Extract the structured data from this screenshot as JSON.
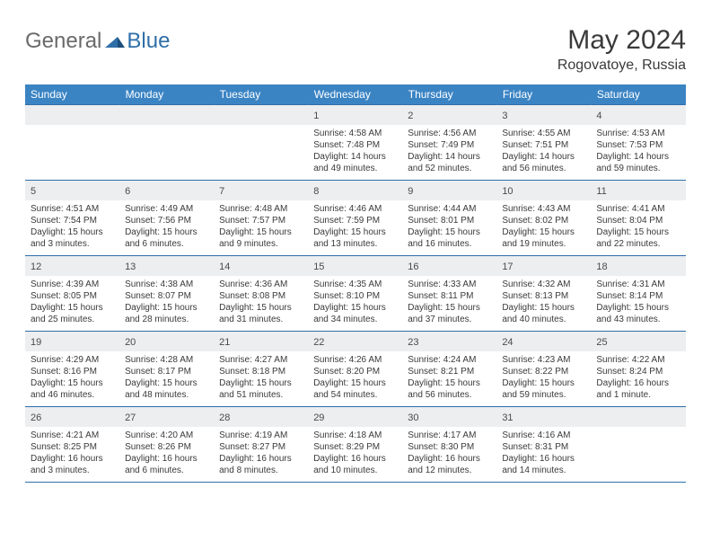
{
  "brand": {
    "part1": "General",
    "part2": "Blue"
  },
  "title": "May 2024",
  "location": "Rogovatoye, Russia",
  "theme": {
    "header_bg": "#3b84c4",
    "header_fg": "#ffffff",
    "rule_color": "#2f6fa8",
    "daynum_bg": "#eceeef",
    "text_color": "#3a3a3a"
  },
  "weekdays": [
    "Sunday",
    "Monday",
    "Tuesday",
    "Wednesday",
    "Thursday",
    "Friday",
    "Saturday"
  ],
  "weeks": [
    [
      null,
      null,
      null,
      {
        "d": "1",
        "sr": "4:58 AM",
        "ss": "7:48 PM",
        "dl": "14 hours and 49 minutes."
      },
      {
        "d": "2",
        "sr": "4:56 AM",
        "ss": "7:49 PM",
        "dl": "14 hours and 52 minutes."
      },
      {
        "d": "3",
        "sr": "4:55 AM",
        "ss": "7:51 PM",
        "dl": "14 hours and 56 minutes."
      },
      {
        "d": "4",
        "sr": "4:53 AM",
        "ss": "7:53 PM",
        "dl": "14 hours and 59 minutes."
      }
    ],
    [
      {
        "d": "5",
        "sr": "4:51 AM",
        "ss": "7:54 PM",
        "dl": "15 hours and 3 minutes."
      },
      {
        "d": "6",
        "sr": "4:49 AM",
        "ss": "7:56 PM",
        "dl": "15 hours and 6 minutes."
      },
      {
        "d": "7",
        "sr": "4:48 AM",
        "ss": "7:57 PM",
        "dl": "15 hours and 9 minutes."
      },
      {
        "d": "8",
        "sr": "4:46 AM",
        "ss": "7:59 PM",
        "dl": "15 hours and 13 minutes."
      },
      {
        "d": "9",
        "sr": "4:44 AM",
        "ss": "8:01 PM",
        "dl": "15 hours and 16 minutes."
      },
      {
        "d": "10",
        "sr": "4:43 AM",
        "ss": "8:02 PM",
        "dl": "15 hours and 19 minutes."
      },
      {
        "d": "11",
        "sr": "4:41 AM",
        "ss": "8:04 PM",
        "dl": "15 hours and 22 minutes."
      }
    ],
    [
      {
        "d": "12",
        "sr": "4:39 AM",
        "ss": "8:05 PM",
        "dl": "15 hours and 25 minutes."
      },
      {
        "d": "13",
        "sr": "4:38 AM",
        "ss": "8:07 PM",
        "dl": "15 hours and 28 minutes."
      },
      {
        "d": "14",
        "sr": "4:36 AM",
        "ss": "8:08 PM",
        "dl": "15 hours and 31 minutes."
      },
      {
        "d": "15",
        "sr": "4:35 AM",
        "ss": "8:10 PM",
        "dl": "15 hours and 34 minutes."
      },
      {
        "d": "16",
        "sr": "4:33 AM",
        "ss": "8:11 PM",
        "dl": "15 hours and 37 minutes."
      },
      {
        "d": "17",
        "sr": "4:32 AM",
        "ss": "8:13 PM",
        "dl": "15 hours and 40 minutes."
      },
      {
        "d": "18",
        "sr": "4:31 AM",
        "ss": "8:14 PM",
        "dl": "15 hours and 43 minutes."
      }
    ],
    [
      {
        "d": "19",
        "sr": "4:29 AM",
        "ss": "8:16 PM",
        "dl": "15 hours and 46 minutes."
      },
      {
        "d": "20",
        "sr": "4:28 AM",
        "ss": "8:17 PM",
        "dl": "15 hours and 48 minutes."
      },
      {
        "d": "21",
        "sr": "4:27 AM",
        "ss": "8:18 PM",
        "dl": "15 hours and 51 minutes."
      },
      {
        "d": "22",
        "sr": "4:26 AM",
        "ss": "8:20 PM",
        "dl": "15 hours and 54 minutes."
      },
      {
        "d": "23",
        "sr": "4:24 AM",
        "ss": "8:21 PM",
        "dl": "15 hours and 56 minutes."
      },
      {
        "d": "24",
        "sr": "4:23 AM",
        "ss": "8:22 PM",
        "dl": "15 hours and 59 minutes."
      },
      {
        "d": "25",
        "sr": "4:22 AM",
        "ss": "8:24 PM",
        "dl": "16 hours and 1 minute."
      }
    ],
    [
      {
        "d": "26",
        "sr": "4:21 AM",
        "ss": "8:25 PM",
        "dl": "16 hours and 3 minutes."
      },
      {
        "d": "27",
        "sr": "4:20 AM",
        "ss": "8:26 PM",
        "dl": "16 hours and 6 minutes."
      },
      {
        "d": "28",
        "sr": "4:19 AM",
        "ss": "8:27 PM",
        "dl": "16 hours and 8 minutes."
      },
      {
        "d": "29",
        "sr": "4:18 AM",
        "ss": "8:29 PM",
        "dl": "16 hours and 10 minutes."
      },
      {
        "d": "30",
        "sr": "4:17 AM",
        "ss": "8:30 PM",
        "dl": "16 hours and 12 minutes."
      },
      {
        "d": "31",
        "sr": "4:16 AM",
        "ss": "8:31 PM",
        "dl": "16 hours and 14 minutes."
      },
      null
    ]
  ],
  "labels": {
    "sunrise": "Sunrise: ",
    "sunset": "Sunset: ",
    "daylight": "Daylight: "
  }
}
